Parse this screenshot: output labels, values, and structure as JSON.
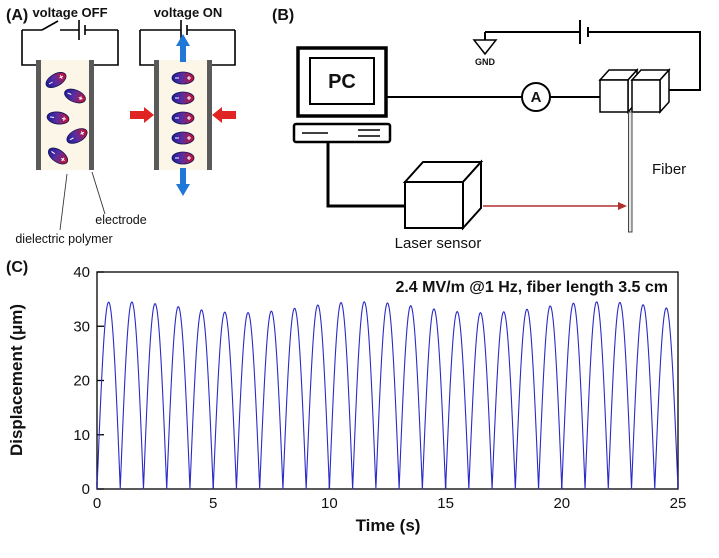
{
  "panels": {
    "a": {
      "label": "(A)",
      "voltage_off": "voltage OFF",
      "voltage_on": "voltage ON",
      "electrode": "electrode",
      "dielectric": "dielectric polymer"
    },
    "b": {
      "label": "(B)",
      "pc": "PC",
      "gnd": "GND",
      "ammeter": "A",
      "fiber": "Fiber",
      "laser_sensor": "Laser sensor"
    },
    "c": {
      "label": "(C)"
    }
  },
  "chart_data": {
    "type": "line",
    "title": "",
    "xlabel": "Time (s)",
    "ylabel": "Displacement (μm)",
    "xlim": [
      0,
      25
    ],
    "ylim": [
      0,
      40
    ],
    "xticks": [
      0,
      5,
      10,
      15,
      20,
      25
    ],
    "yticks": [
      0,
      10,
      20,
      30,
      40
    ],
    "grid": false,
    "legend": false,
    "annotation": "2.4 MV/m @1 Hz, fiber length 3.5 cm",
    "series": [
      {
        "name": "fiber displacement",
        "color": "#2a2ac8",
        "waveform": "rectified_sine",
        "frequency_hz": 1,
        "peak_um": 33.5,
        "peak_variation_um": 1.0,
        "min_um": 0,
        "duration_s": 25,
        "num_peaks": 25
      }
    ]
  },
  "colors": {
    "curve_blue": "#2a2ac8",
    "arrow_red": "#e02424",
    "arrow_blue": "#1f78d8",
    "dipole_blue": "#1b1b9e",
    "dipole_red": "#c8102e",
    "electrode_gray": "#5a5a5a",
    "dielectric_bg": "#fbf6e7"
  }
}
